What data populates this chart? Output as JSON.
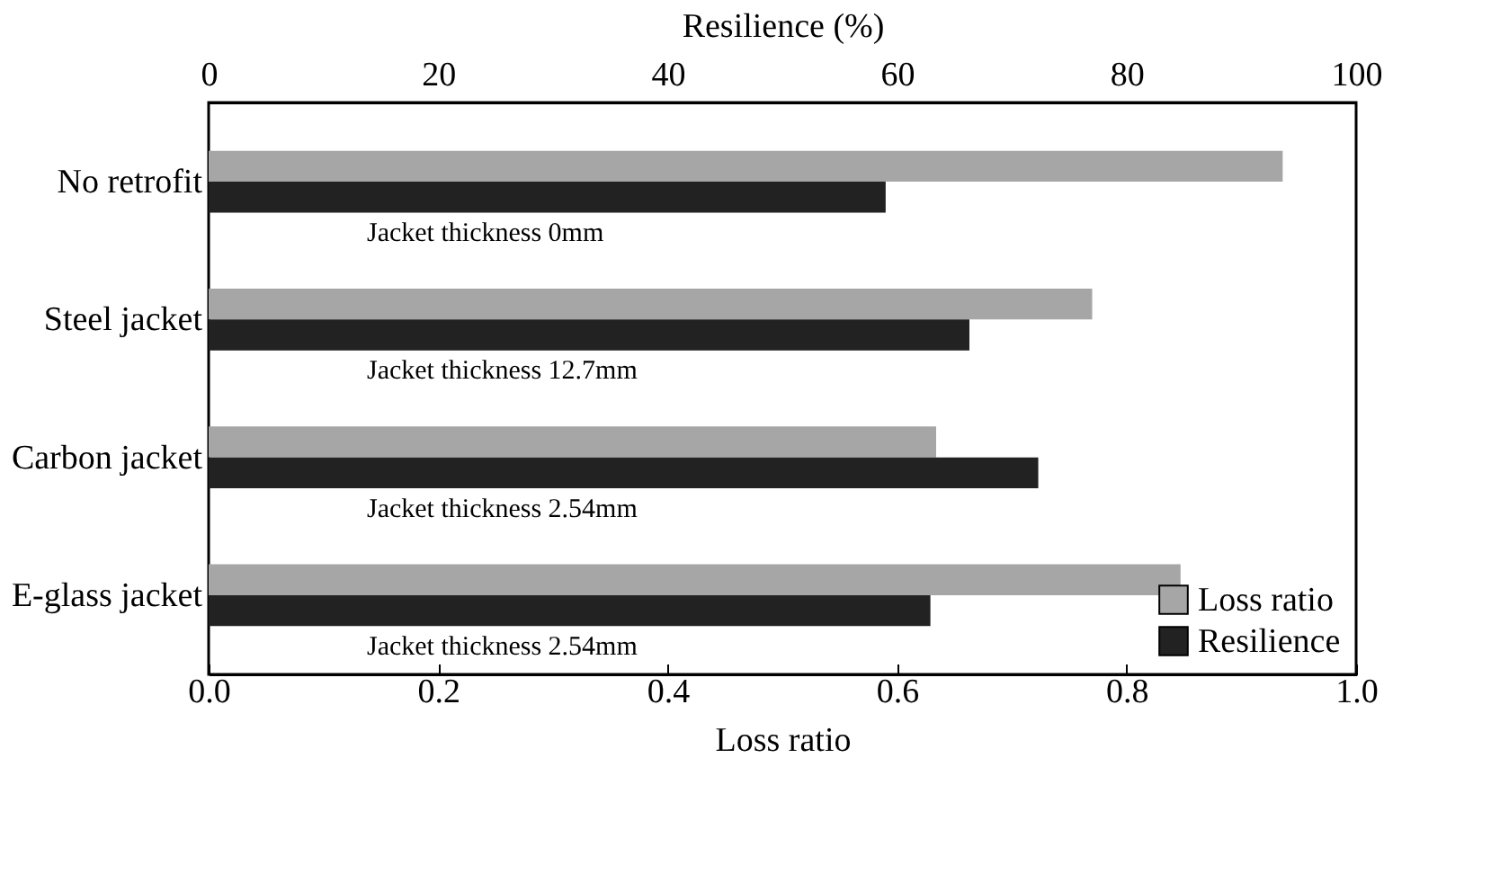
{
  "chart_data": {
    "type": "bar",
    "orientation": "horizontal",
    "categories": [
      "No retrofit",
      "Steel jacket",
      "Carbon jacket",
      "E-glass jacket"
    ],
    "series": [
      {
        "name": "Loss ratio",
        "color": "#a6a6a6",
        "values": [
          0.936,
          0.77,
          0.634,
          0.847
        ]
      },
      {
        "name": "Resilience",
        "color": "#222222",
        "axis": "x2",
        "values": [
          59.0,
          66.3,
          72.3,
          62.9
        ]
      }
    ],
    "xlabel": "Loss ratio",
    "x2label": "Resilience (%)",
    "xlim": [
      0,
      1
    ],
    "xticks": [
      {
        "value": 0,
        "label": "0.0"
      },
      {
        "value": 0.2,
        "label": "0.2"
      },
      {
        "value": 0.4,
        "label": "0.4"
      },
      {
        "value": 0.6,
        "label": "0.6"
      },
      {
        "value": 0.8,
        "label": "0.8"
      },
      {
        "value": 1,
        "label": "1.0"
      }
    ],
    "x2lim": [
      0,
      100
    ],
    "x2ticks": [
      0,
      20,
      40,
      60,
      80,
      100
    ],
    "annotations": [
      "Jacket thickness 0mm",
      "Jacket thickness 12.7mm",
      "Jacket thickness 2.54mm",
      "Jacket thickness 2.54mm"
    ],
    "legend": "bottom right",
    "grid": false
  }
}
